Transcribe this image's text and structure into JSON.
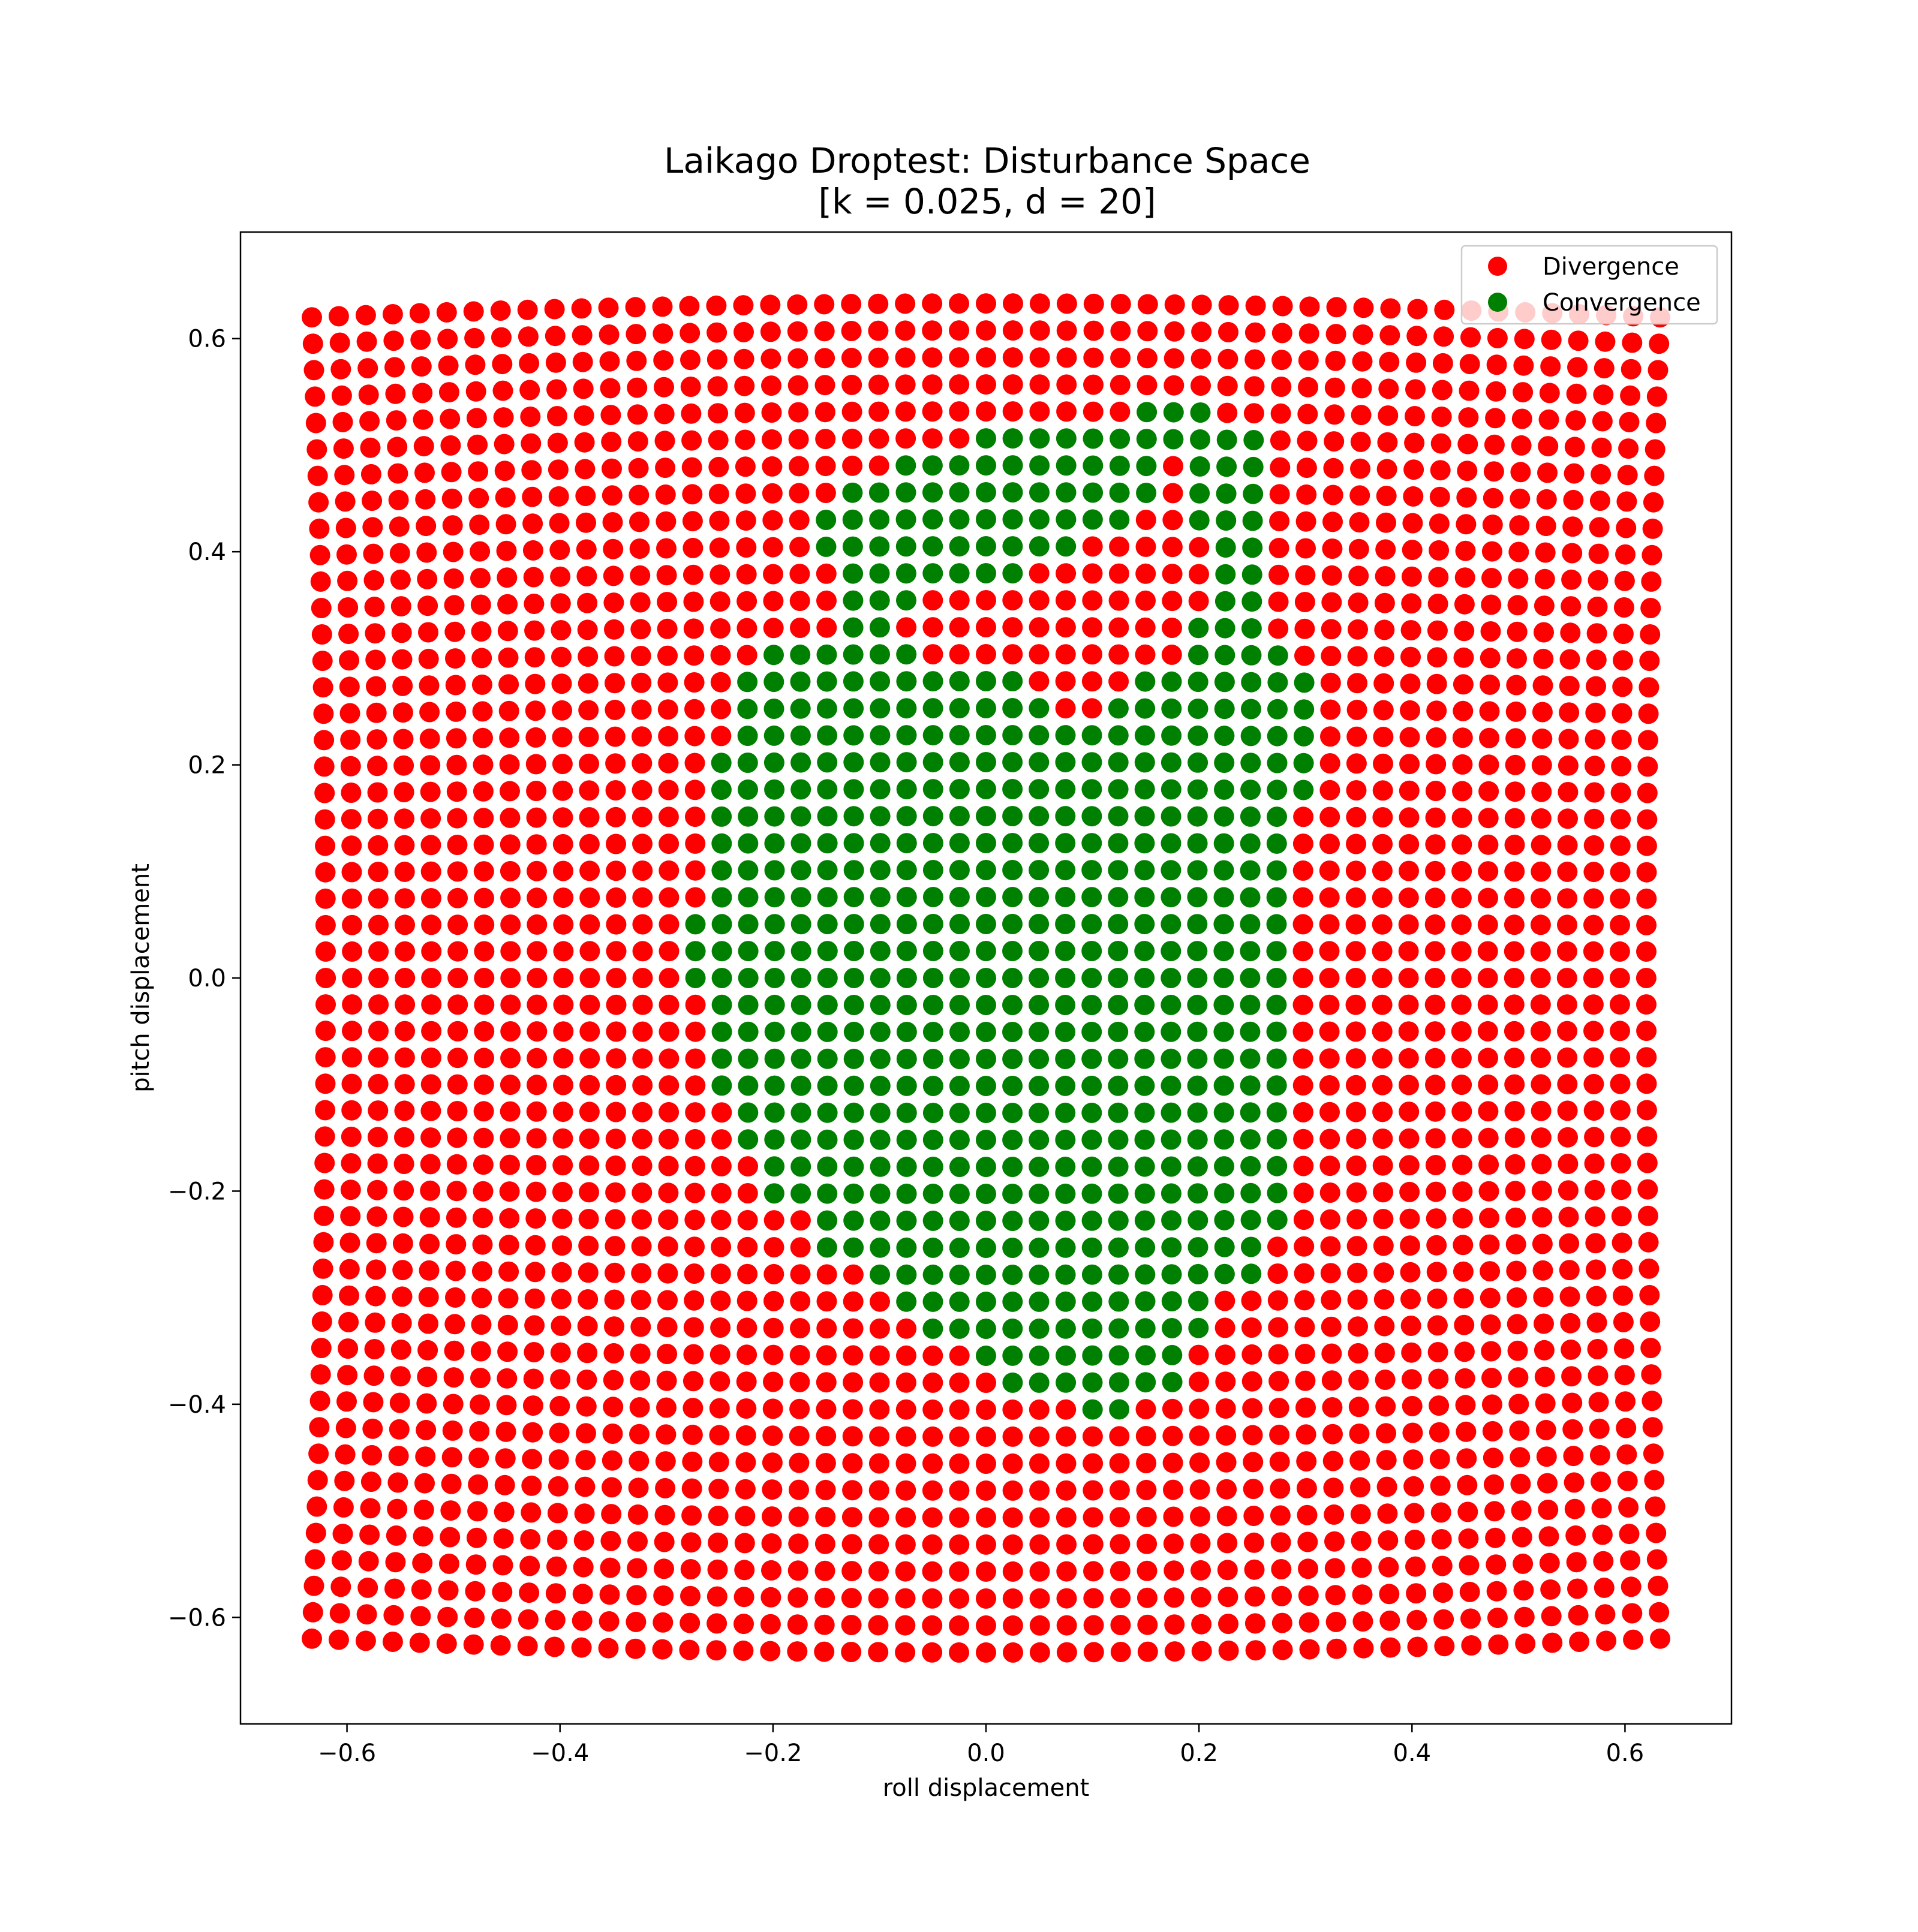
{
  "chart_data": {
    "type": "scatter",
    "title": "Laikago Droptest: Disturbance Space",
    "subtitle": "[k = 0.025, d = 20]",
    "xlabel": "roll displacement",
    "ylabel": "pitch displacement",
    "xlim": [
      -0.7,
      0.7
    ],
    "ylim": [
      -0.7,
      0.7
    ],
    "xticks": [
      -0.6,
      -0.4,
      -0.2,
      0.0,
      0.2,
      0.4,
      0.6
    ],
    "yticks": [
      -0.6,
      -0.4,
      -0.2,
      0.0,
      0.2,
      0.4,
      0.6
    ],
    "xtick_labels": [
      "−0.6",
      "−0.4",
      "−0.2",
      "0.0",
      "0.2",
      "0.4",
      "0.6"
    ],
    "ytick_labels": [
      "−0.6",
      "−0.4",
      "−0.2",
      "0.0",
      "0.2",
      "0.4",
      "0.6"
    ],
    "grid": false,
    "legend_position": "top-right",
    "grid_sampling": {
      "x_range": [
        -0.62,
        0.62
      ],
      "y_range": [
        -0.62,
        0.62
      ],
      "columns": 51,
      "rows": 51,
      "edge_bow": 0.013
    },
    "series": [
      {
        "name": "Divergence",
        "color": "#ff0000",
        "description": "all sampled grid points not in the convergence region"
      },
      {
        "name": "Convergence",
        "color": "#008000",
        "region_by_row": [
          {
            "y": 0.52,
            "x_ranges": [
              [
                0.15,
                0.21
              ]
            ]
          },
          {
            "y": 0.5,
            "x_ranges": [
              [
                0.0,
                0.18
              ],
              [
                0.2,
                0.24
              ]
            ]
          },
          {
            "y": 0.48,
            "x_ranges": [
              [
                -0.07,
                0.16
              ],
              [
                0.2,
                0.24
              ]
            ]
          },
          {
            "y": 0.45,
            "x_ranges": [
              [
                -0.12,
                0.16
              ],
              [
                0.2,
                0.24
              ]
            ]
          },
          {
            "y": 0.43,
            "x_ranges": [
              [
                -0.15,
                0.14
              ],
              [
                0.2,
                0.24
              ]
            ]
          },
          {
            "y": 0.4,
            "x_ranges": [
              [
                -0.15,
                0.08
              ],
              [
                0.22,
                0.26
              ]
            ]
          },
          {
            "y": 0.38,
            "x_ranges": [
              [
                -0.12,
                0.04
              ],
              [
                0.22,
                0.26
              ]
            ]
          },
          {
            "y": 0.35,
            "x_ranges": [
              [
                -0.12,
                -0.07
              ],
              [
                0.22,
                0.26
              ]
            ]
          },
          {
            "y": 0.33,
            "x_ranges": [
              [
                -0.12,
                -0.1
              ],
              [
                0.2,
                0.26
              ]
            ]
          },
          {
            "y": 0.3,
            "x_ranges": [
              [
                -0.2,
                -0.07
              ],
              [
                0.2,
                0.28
              ]
            ]
          },
          {
            "y": 0.28,
            "x_ranges": [
              [
                -0.22,
                0.03
              ],
              [
                0.15,
                0.29
              ]
            ]
          },
          {
            "y": 0.25,
            "x_ranges": [
              [
                -0.22,
                0.05
              ],
              [
                0.12,
                0.29
              ]
            ]
          },
          {
            "y": 0.23,
            "x_ranges": [
              [
                -0.22,
                0.29
              ]
            ]
          },
          {
            "y": 0.2,
            "x_ranges": [
              [
                -0.25,
                0.29
              ]
            ]
          },
          {
            "y": 0.18,
            "x_ranges": [
              [
                -0.25,
                0.29
              ]
            ]
          },
          {
            "y": 0.15,
            "x_ranges": [
              [
                -0.25,
                0.27
              ]
            ]
          },
          {
            "y": 0.13,
            "x_ranges": [
              [
                -0.25,
                0.27
              ]
            ]
          },
          {
            "y": 0.1,
            "x_ranges": [
              [
                -0.25,
                0.27
              ]
            ]
          },
          {
            "y": 0.08,
            "x_ranges": [
              [
                -0.25,
                0.27
              ]
            ]
          },
          {
            "y": 0.05,
            "x_ranges": [
              [
                -0.28,
                0.27
              ]
            ]
          },
          {
            "y": 0.03,
            "x_ranges": [
              [
                -0.28,
                0.27
              ]
            ]
          },
          {
            "y": 0.0,
            "x_ranges": [
              [
                -0.28,
                0.27
              ]
            ]
          },
          {
            "y": -0.03,
            "x_ranges": [
              [
                -0.25,
                0.27
              ]
            ]
          },
          {
            "y": -0.05,
            "x_ranges": [
              [
                -0.25,
                0.27
              ]
            ]
          },
          {
            "y": -0.08,
            "x_ranges": [
              [
                -0.25,
                0.27
              ]
            ]
          },
          {
            "y": -0.1,
            "x_ranges": [
              [
                -0.25,
                0.27
              ]
            ]
          },
          {
            "y": -0.13,
            "x_ranges": [
              [
                -0.22,
                0.27
              ]
            ]
          },
          {
            "y": -0.15,
            "x_ranges": [
              [
                -0.22,
                0.27
              ]
            ]
          },
          {
            "y": -0.18,
            "x_ranges": [
              [
                -0.2,
                0.27
              ]
            ]
          },
          {
            "y": -0.2,
            "x_ranges": [
              [
                -0.2,
                0.27
              ]
            ]
          },
          {
            "y": -0.23,
            "x_ranges": [
              [
                -0.15,
                0.27
              ]
            ]
          },
          {
            "y": -0.25,
            "x_ranges": [
              [
                -0.15,
                0.24
              ]
            ]
          },
          {
            "y": -0.28,
            "x_ranges": [
              [
                -0.1,
                0.24
              ]
            ]
          },
          {
            "y": -0.3,
            "x_ranges": [
              [
                -0.07,
                0.21
              ]
            ]
          },
          {
            "y": -0.33,
            "x_ranges": [
              [
                -0.05,
                0.21
              ]
            ]
          },
          {
            "y": -0.35,
            "x_ranges": [
              [
                0.0,
                0.18
              ]
            ]
          },
          {
            "y": -0.38,
            "x_ranges": [
              [
                0.03,
                0.18
              ]
            ]
          },
          {
            "y": -0.4,
            "x_ranges": [
              [
                0.1,
                0.13
              ]
            ]
          }
        ]
      }
    ]
  }
}
